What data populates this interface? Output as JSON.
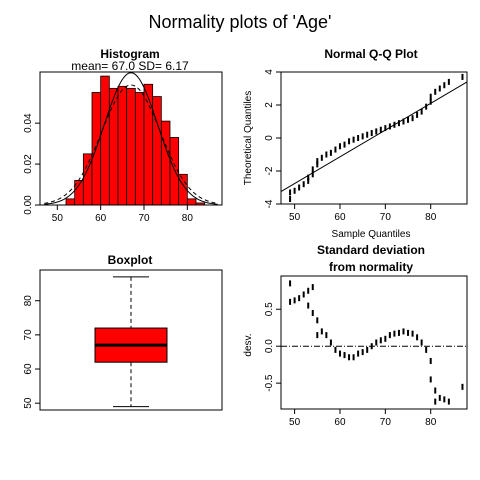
{
  "title": "Normality plots of 'Age'",
  "colors": {
    "bar_fill": "#ff0000",
    "stroke": "#000000",
    "background": "#ffffff"
  },
  "chart_data": [
    {
      "type": "bar",
      "panel": "histogram",
      "title": "Histogram",
      "subtitle": "mean= 67.0  SD= 6.17",
      "xlabel": "",
      "ylabel": "",
      "xlim": [
        46,
        88
      ],
      "ylim": [
        0,
        0.065
      ],
      "x_ticks": [
        50,
        60,
        70,
        80
      ],
      "y_ticks": [
        0.0,
        0.02,
        0.04
      ],
      "bin_width": 2,
      "bin_starts": [
        48,
        50,
        52,
        54,
        56,
        58,
        60,
        62,
        64,
        66,
        68,
        70,
        72,
        74,
        76,
        78,
        80,
        82,
        84,
        86
      ],
      "values": [
        0.0,
        0.0,
        0.003,
        0.012,
        0.025,
        0.055,
        0.063,
        0.057,
        0.058,
        0.057,
        0.055,
        0.059,
        0.053,
        0.041,
        0.033,
        0.015,
        0.003,
        0.001,
        0.0,
        0.0
      ],
      "curves": [
        {
          "kind": "normal",
          "mean": 67.0,
          "sd": 6.17,
          "dash": "solid"
        },
        {
          "kind": "density",
          "mean": 67.0,
          "sd": 6.8,
          "dash": "dashed"
        }
      ]
    },
    {
      "type": "scatter",
      "panel": "qq",
      "title": "Normal Q-Q Plot",
      "xlabel": "Sample Quantiles",
      "ylabel": "Theoretical Quantiles",
      "xlim": [
        47,
        88
      ],
      "ylim": [
        -4,
        4
      ],
      "x_ticks": [
        50,
        60,
        70,
        80
      ],
      "y_ticks": [
        -4,
        -2,
        0,
        2,
        4
      ],
      "reference_line": {
        "intercept": -10.86,
        "slope": 0.162
      },
      "points": [
        [
          49,
          -3.7
        ],
        [
          49,
          -3.3
        ],
        [
          50,
          -3.2
        ],
        [
          51,
          -3.0
        ],
        [
          52,
          -2.8
        ],
        [
          53,
          -2.6
        ],
        [
          53,
          -2.4
        ],
        [
          54,
          -2.2
        ],
        [
          54,
          -1.9
        ],
        [
          55,
          -1.6
        ],
        [
          55,
          -1.4
        ],
        [
          56,
          -1.2
        ],
        [
          57,
          -1.0
        ],
        [
          58,
          -0.9
        ],
        [
          59,
          -0.7
        ],
        [
          60,
          -0.5
        ],
        [
          61,
          -0.4
        ],
        [
          62,
          -0.2
        ],
        [
          63,
          -0.1
        ],
        [
          64,
          0.0
        ],
        [
          65,
          0.1
        ],
        [
          66,
          0.2
        ],
        [
          67,
          0.3
        ],
        [
          68,
          0.4
        ],
        [
          69,
          0.5
        ],
        [
          70,
          0.6
        ],
        [
          71,
          0.7
        ],
        [
          72,
          0.8
        ],
        [
          73,
          0.9
        ],
        [
          74,
          1.0
        ],
        [
          75,
          1.1
        ],
        [
          76,
          1.2
        ],
        [
          77,
          1.4
        ],
        [
          78,
          1.6
        ],
        [
          79,
          1.9
        ],
        [
          80,
          2.2
        ],
        [
          80,
          2.5
        ],
        [
          81,
          2.8
        ],
        [
          82,
          3.0
        ],
        [
          83,
          3.2
        ],
        [
          84,
          3.4
        ],
        [
          87,
          3.7
        ]
      ]
    },
    {
      "type": "box",
      "panel": "boxplot",
      "title": "Boxplot",
      "ylim": [
        48,
        89
      ],
      "y_ticks": [
        50,
        60,
        70,
        80
      ],
      "min": 49,
      "q1": 62,
      "median": 67,
      "q3": 72,
      "max": 87
    },
    {
      "type": "scatter",
      "panel": "deviation",
      "title": "Standard deviation",
      "subtitle": "from normality",
      "xlabel": "",
      "ylabel": "desv.",
      "xlim": [
        47,
        88
      ],
      "ylim": [
        -0.85,
        0.95
      ],
      "x_ticks": [
        50,
        60,
        70,
        80
      ],
      "y_ticks": [
        -0.5,
        0.0,
        0.5
      ],
      "y_tick_labels": [
        "-0.5",
        "0.0",
        "0.5"
      ],
      "zero_line": 0.0,
      "points": [
        [
          49,
          0.85
        ],
        [
          49,
          0.6
        ],
        [
          50,
          0.62
        ],
        [
          51,
          0.65
        ],
        [
          52,
          0.7
        ],
        [
          53,
          0.75
        ],
        [
          53,
          0.55
        ],
        [
          54,
          0.8
        ],
        [
          54,
          0.45
        ],
        [
          55,
          0.35
        ],
        [
          55,
          0.15
        ],
        [
          56,
          0.2
        ],
        [
          57,
          0.15
        ],
        [
          58,
          0.05
        ],
        [
          59,
          -0.05
        ],
        [
          60,
          -0.1
        ],
        [
          61,
          -0.12
        ],
        [
          62,
          -0.15
        ],
        [
          63,
          -0.15
        ],
        [
          64,
          -0.1
        ],
        [
          65,
          -0.08
        ],
        [
          66,
          -0.05
        ],
        [
          67,
          0.0
        ],
        [
          68,
          0.05
        ],
        [
          69,
          0.08
        ],
        [
          70,
          0.1
        ],
        [
          71,
          0.15
        ],
        [
          72,
          0.17
        ],
        [
          73,
          0.18
        ],
        [
          74,
          0.2
        ],
        [
          75,
          0.18
        ],
        [
          76,
          0.17
        ],
        [
          77,
          0.12
        ],
        [
          78,
          0.05
        ],
        [
          79,
          -0.05
        ],
        [
          80,
          -0.2
        ],
        [
          80,
          -0.45
        ],
        [
          81,
          -0.6
        ],
        [
          81,
          -0.75
        ],
        [
          82,
          -0.7
        ],
        [
          83,
          -0.72
        ],
        [
          84,
          -0.75
        ],
        [
          87,
          -0.55
        ]
      ]
    }
  ]
}
